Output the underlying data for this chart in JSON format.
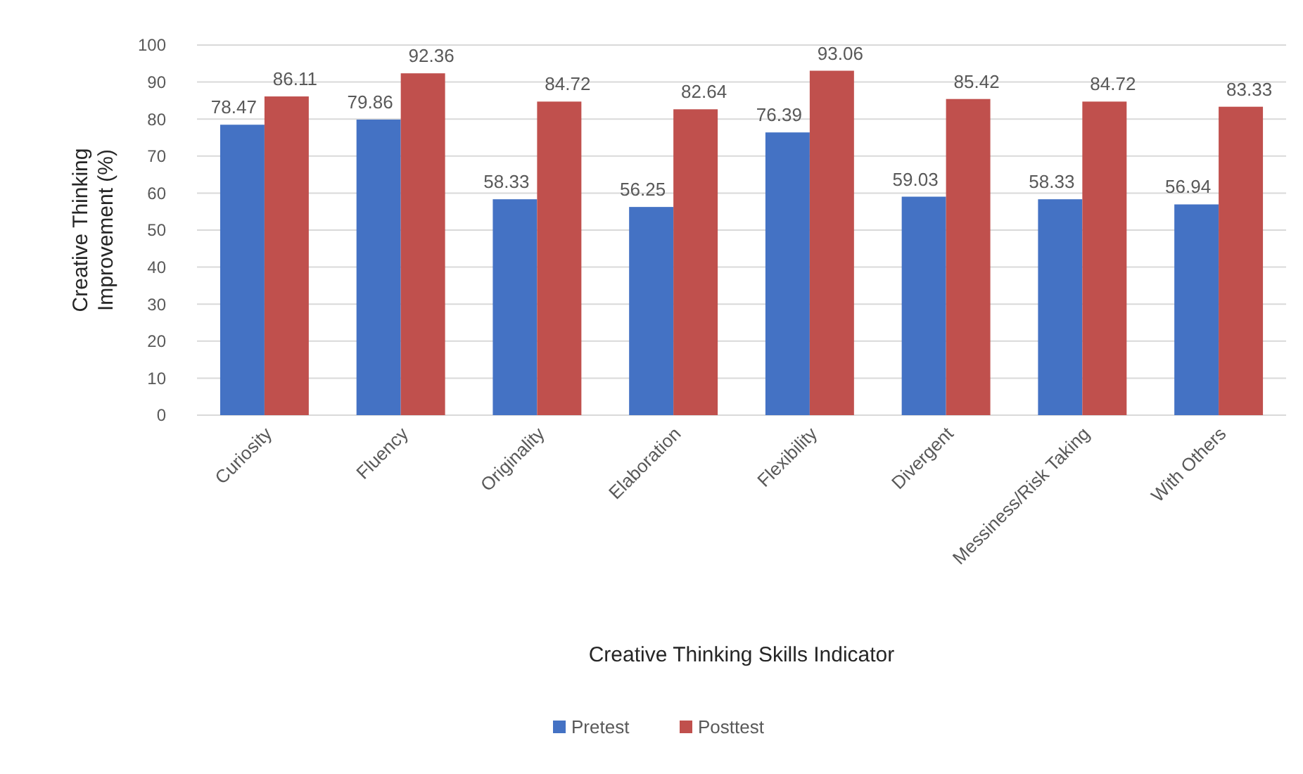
{
  "chart_data": {
    "type": "bar",
    "xlabel": "Creative Thinking Skills Indicator",
    "ylabel": "Creative Thinking Improvement (%)",
    "categories": [
      "Curiosity",
      "Fluency",
      "Originality",
      "Elaboration",
      "Flexibility",
      "Divergent",
      "Messiness/Risk Taking",
      "With Others"
    ],
    "series": [
      {
        "name": "Pretest",
        "color": "#4472c4",
        "values": [
          78.47,
          79.86,
          58.33,
          56.25,
          76.39,
          59.03,
          58.33,
          56.94
        ]
      },
      {
        "name": "Posttest",
        "color": "#c0504d",
        "values": [
          86.11,
          92.36,
          84.72,
          82.64,
          93.06,
          85.42,
          84.72,
          83.33
        ]
      }
    ],
    "ylim": [
      0,
      100
    ],
    "yticks": [
      0,
      10,
      20,
      30,
      40,
      50,
      60,
      70,
      80,
      90,
      100
    ],
    "grid": "y",
    "legend": "bottom",
    "data_labels": true
  }
}
